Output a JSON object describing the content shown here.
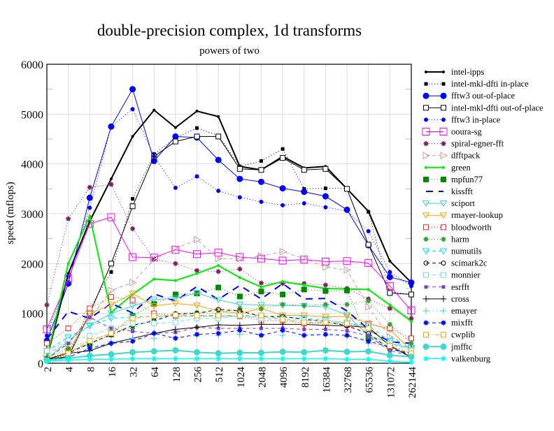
{
  "chart_data": {
    "type": "line",
    "title": "double-precision complex, 1d transforms",
    "subtitle": "powers of two",
    "xlabel": "",
    "ylabel": "speed (mflops)",
    "ylim": [
      0,
      6000
    ],
    "yticks": [
      "0",
      "1000",
      "2000",
      "3000",
      "4000",
      "5000",
      "6000"
    ],
    "x": [
      "2",
      "4",
      "8",
      "16",
      "32",
      "64",
      "128",
      "256",
      "512",
      "1024",
      "2048",
      "4096",
      "8192",
      "16384",
      "32768",
      "65536",
      "131072",
      "262144"
    ],
    "grid": true,
    "legend_position": "right",
    "series": [
      {
        "name": "intel-ipps",
        "color": "#000000",
        "dash": "",
        "marker": "dot",
        "width": 2,
        "values": [
          90,
          1800,
          2850,
          3700,
          4550,
          5080,
          4730,
          5060,
          4950,
          3950,
          3880,
          4150,
          3920,
          3950,
          3500,
          3050,
          2050,
          1620
        ]
      },
      {
        "name": "intel-mkl-dfti in-place",
        "color": "#000000",
        "dash": "1,3",
        "marker": "square-filled",
        "width": 1,
        "values": [
          100,
          150,
          1100,
          1830,
          3300,
          4200,
          4520,
          4720,
          4570,
          3950,
          4060,
          4300,
          3500,
          3510,
          3510,
          3040,
          1430,
          1380
        ]
      },
      {
        "name": "fftw3 out-of-place",
        "color": "#0000ff",
        "dash": "",
        "marker": "dot-big",
        "width": 1,
        "values": [
          450,
          1600,
          3320,
          4750,
          5500,
          4060,
          4550,
          4530,
          4080,
          3700,
          3640,
          3510,
          3440,
          3350,
          3080,
          2370,
          1730,
          1620
        ]
      },
      {
        "name": "intel-mkl-dfti out-of-place",
        "color": "#000000",
        "dash": "",
        "marker": "square-open",
        "width": 1,
        "values": [
          80,
          130,
          1000,
          2000,
          3150,
          4150,
          4450,
          4550,
          4550,
          3900,
          3880,
          4120,
          3880,
          3900,
          3500,
          2380,
          1410,
          1380
        ]
      },
      {
        "name": "fftw3 in-place",
        "color": "#0000ff",
        "dash": "1,3",
        "marker": "dot-mid",
        "width": 1,
        "values": [
          550,
          1750,
          3120,
          4750,
          5100,
          4150,
          3520,
          3750,
          3460,
          3330,
          3240,
          3170,
          3210,
          3130,
          3060,
          2650,
          1830,
          1550
        ]
      },
      {
        "name": "ooura-sg",
        "color": "#ff00ff",
        "dash": "",
        "marker": "square-open-big",
        "width": 1,
        "values": [
          680,
          1700,
          2800,
          2930,
          2130,
          2120,
          2280,
          2190,
          2220,
          2130,
          2100,
          2060,
          2080,
          2040,
          2050,
          2010,
          1550,
          1060
        ]
      },
      {
        "name": "spiral-egner-fft",
        "color": "#7f1f5f",
        "dash": "1,3",
        "marker": "star",
        "width": 1,
        "values": [
          1170,
          2900,
          3530,
          3590,
          2700,
          2090,
          2000,
          1860,
          1840,
          1890,
          1610,
          1600,
          1600,
          1570,
          1500,
          1290,
          1100,
          900
        ]
      },
      {
        "name": "dfftpack",
        "color": "#c8a0a0",
        "dash": "5,4",
        "marker": "tri-right",
        "width": 1,
        "values": [
          200,
          400,
          900,
          1460,
          1620,
          2080,
          2300,
          2480,
          2100,
          2100,
          2150,
          2240,
          2100,
          1930,
          1870,
          1130,
          520,
          350
        ]
      },
      {
        "name": "green",
        "color": "#00ee00",
        "dash": "",
        "marker": "dot",
        "width": 2,
        "values": [
          100,
          2000,
          2950,
          1020,
          1380,
          1690,
          1660,
          1800,
          1960,
          1720,
          1530,
          1640,
          1570,
          1500,
          1490,
          1480,
          1170,
          840
        ]
      },
      {
        "name": "mpfun77",
        "color": "#008800",
        "dash": "1,3",
        "marker": "square-filled-big",
        "width": 1,
        "values": [
          80,
          250,
          380,
          580,
          950,
          1190,
          1380,
          1400,
          1520,
          1340,
          1440,
          1380,
          1480,
          1450,
          1460,
          500,
          350,
          200
        ]
      },
      {
        "name": "kissfft",
        "color": "#0000ff",
        "dash": "10,8",
        "marker": "none",
        "width": 2,
        "values": [
          480,
          1040,
          900,
          1200,
          1010,
          1390,
          1250,
          1540,
          1280,
          1560,
          1290,
          1600,
          1290,
          1300,
          1050,
          680,
          430,
          400
        ]
      },
      {
        "name": "sciport",
        "color": "#40d0d0",
        "dash": "",
        "marker": "tri-down",
        "width": 1,
        "values": [
          90,
          450,
          760,
          1000,
          1150,
          1280,
          1300,
          1410,
          1270,
          1180,
          1170,
          1160,
          1150,
          1130,
          970,
          560,
          400,
          300
        ]
      },
      {
        "name": "rmayer-lookup",
        "color": "#ffa000",
        "dash": "",
        "marker": "tri-down",
        "width": 1,
        "values": [
          80,
          220,
          1000,
          1170,
          1400,
          1150,
          1200,
          1160,
          1050,
          1000,
          1100,
          960,
          960,
          930,
          940,
          800,
          680,
          250
        ]
      },
      {
        "name": "bloodworth",
        "color": "#ff2020",
        "dash": "1,3",
        "marker": "square-open",
        "width": 1,
        "values": [
          400,
          700,
          1100,
          1330,
          1270,
          1000,
          950,
          940,
          950,
          940,
          860,
          860,
          800,
          810,
          770,
          780,
          700,
          500
        ]
      },
      {
        "name": "harm",
        "color": "#30a030",
        "dash": "1,3",
        "marker": "star",
        "width": 1,
        "values": [
          100,
          300,
          450,
          600,
          700,
          900,
          1000,
          1020,
          1000,
          1100,
          1090,
          1180,
          1160,
          1180,
          1180,
          1250,
          780,
          400
        ]
      },
      {
        "name": "numutils",
        "color": "#00e0ff",
        "dash": "5,4",
        "marker": "tri-down",
        "width": 1,
        "values": [
          250,
          520,
          750,
          900,
          930,
          940,
          940,
          950,
          940,
          940,
          930,
          920,
          900,
          870,
          800,
          750,
          450,
          300
        ]
      },
      {
        "name": "scimark2c",
        "color": "#000000",
        "dash": "5,4",
        "marker": "circle-open",
        "width": 1,
        "values": [
          80,
          200,
          400,
          570,
          760,
          850,
          990,
          1000,
          1080,
          1050,
          940,
          940,
          880,
          840,
          750,
          600,
          280,
          200
        ]
      },
      {
        "name": "monnier",
        "color": "#70e0e0",
        "dash": "5,4",
        "marker": "square-open",
        "width": 1,
        "values": [
          250,
          450,
          550,
          700,
          800,
          800,
          820,
          900,
          900,
          950,
          900,
          880,
          860,
          850,
          820,
          700,
          400,
          250
        ]
      },
      {
        "name": "esrfft",
        "color": "#8040c0",
        "dash": "5,4",
        "marker": "square-filled",
        "width": 1,
        "values": [
          80,
          400,
          920,
          700,
          640,
          600,
          620,
          720,
          700,
          700,
          700,
          700,
          680,
          680,
          650,
          550,
          250,
          150
        ]
      },
      {
        "name": "cross",
        "color": "#000000",
        "dash": "",
        "marker": "plus",
        "width": 1,
        "values": [
          80,
          200,
          250,
          400,
          500,
          600,
          680,
          720,
          770,
          760,
          780,
          780,
          780,
          760,
          750,
          720,
          350,
          120
        ]
      },
      {
        "name": "emayer",
        "color": "#40d0d0",
        "dash": "1,4",
        "marker": "plus",
        "width": 1,
        "values": [
          60,
          180,
          330,
          430,
          500,
          500,
          520,
          550,
          560,
          580,
          580,
          560,
          560,
          560,
          540,
          400,
          300,
          200
        ]
      },
      {
        "name": "mixfft",
        "color": "#0000ff",
        "dash": "5,4",
        "marker": "star",
        "width": 1,
        "values": [
          60,
          120,
          300,
          400,
          440,
          600,
          500,
          580,
          600,
          660,
          560,
          660,
          560,
          580,
          560,
          440,
          330,
          150
        ]
      },
      {
        "name": "cwplib",
        "color": "#ffa000",
        "dash": "6,3,1,3",
        "marker": "square-open",
        "width": 1,
        "values": [
          60,
          200,
          450,
          600,
          900,
          950,
          970,
          960,
          960,
          960,
          960,
          880,
          820,
          820,
          800,
          700,
          350,
          200
        ]
      },
      {
        "name": "jmfftc",
        "color": "#40d8c8",
        "dash": "",
        "marker": "dot-big",
        "width": 2,
        "values": [
          60,
          100,
          150,
          180,
          220,
          240,
          260,
          220,
          200,
          210,
          210,
          230,
          220,
          260,
          230,
          240,
          160,
          130
        ]
      },
      {
        "name": "valkenburg",
        "color": "#00ffff",
        "dash": "",
        "marker": "star",
        "width": 1.5,
        "values": [
          40,
          60,
          80,
          80,
          90,
          90,
          90,
          90,
          90,
          90,
          90,
          90,
          90,
          90,
          80,
          80,
          40,
          20
        ]
      }
    ]
  }
}
